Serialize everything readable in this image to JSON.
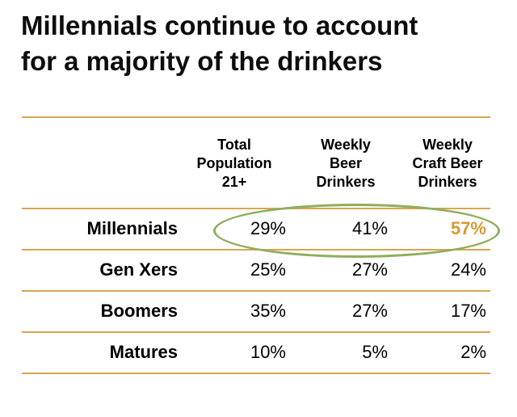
{
  "title": "Millennials continue to account\nfor a majority of the drinkers",
  "columns": [
    {
      "label": "Total\nPopulation\n21+"
    },
    {
      "label": "Weekly\nBeer\nDrinkers"
    },
    {
      "label": "Weekly\nCraft Beer\nDrinkers"
    }
  ],
  "rows": [
    {
      "label": "Millennials",
      "values": [
        "29%",
        "41%",
        "57%"
      ]
    },
    {
      "label": "Gen Xers",
      "values": [
        "25%",
        "27%",
        "24%"
      ]
    },
    {
      "label": "Boomers",
      "values": [
        "35%",
        "27%",
        "17%"
      ]
    },
    {
      "label": "Matures",
      "values": [
        "10%",
        "5%",
        "2%"
      ]
    }
  ],
  "colors": {
    "rule": "#d9a54f",
    "highlight_text": "#d59a2e",
    "highlight_ellipse": "#8fae5e"
  }
}
